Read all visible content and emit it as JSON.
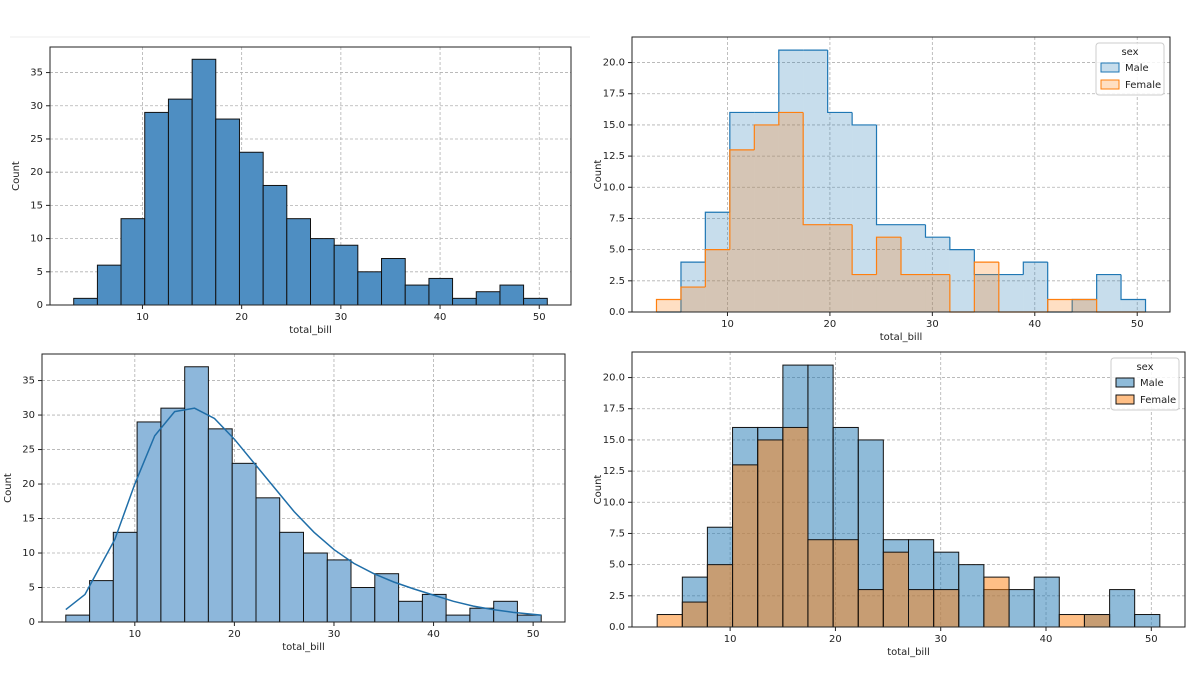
{
  "chart_data": [
    {
      "type": "histogram",
      "xlabel": "total_bill",
      "ylabel": "Count",
      "bins": [
        3.07,
        5.46,
        7.84,
        10.23,
        12.62,
        15.01,
        17.39,
        19.78,
        22.17,
        24.55,
        26.94,
        29.33,
        31.71,
        34.1,
        36.49,
        38.88,
        41.26,
        43.65,
        46.04,
        48.42,
        50.81
      ],
      "values": [
        1,
        6,
        13,
        29,
        31,
        37,
        28,
        23,
        18,
        13,
        10,
        9,
        5,
        7,
        3,
        4,
        1,
        2,
        3,
        1
      ],
      "color": "#4e8ec2",
      "xlim": [
        0.68,
        53.2
      ],
      "ylim": [
        0,
        38.85
      ],
      "xticks": [
        10,
        20,
        30,
        40,
        50
      ],
      "yticks": [
        0,
        5,
        10,
        15,
        20,
        25,
        30,
        35
      ],
      "grid": true
    },
    {
      "type": "histogram",
      "element": "step",
      "alpha": 0.25,
      "xlabel": "total_bill",
      "ylabel": "Count",
      "legend_title": "sex",
      "legend": "upper right",
      "bins": [
        3.07,
        5.46,
        7.84,
        10.23,
        12.62,
        15.01,
        17.39,
        19.78,
        22.17,
        24.55,
        26.94,
        29.33,
        31.71,
        34.1,
        36.49,
        38.88,
        41.26,
        43.65,
        46.04,
        48.42,
        50.81
      ],
      "series": [
        {
          "name": "Male",
          "color": "#1f77b4",
          "values": [
            0,
            4,
            8,
            16,
            16,
            21,
            21,
            16,
            15,
            7,
            7,
            6,
            5,
            3,
            3,
            4,
            0,
            1,
            3,
            1
          ]
        },
        {
          "name": "Female",
          "color": "#ff7f0e",
          "values": [
            1,
            2,
            5,
            13,
            15,
            16,
            7,
            7,
            3,
            6,
            3,
            3,
            0,
            4,
            0,
            0,
            1,
            1,
            0,
            0
          ]
        }
      ],
      "xlim": [
        0.68,
        53.2
      ],
      "ylim": [
        0,
        22.05
      ],
      "xticks": [
        10,
        20,
        30,
        40,
        50
      ],
      "yticks": [
        {
          "value": 0,
          "label": "0.0"
        },
        {
          "value": 2.5,
          "label": "2.5"
        },
        {
          "value": 5,
          "label": "5.0"
        },
        {
          "value": 7.5,
          "label": "7.5"
        },
        {
          "value": 10,
          "label": "10.0"
        },
        {
          "value": 12.5,
          "label": "12.5"
        },
        {
          "value": 15,
          "label": "15.0"
        },
        {
          "value": 17.5,
          "label": "17.5"
        },
        {
          "value": 20,
          "label": "20.0"
        }
      ],
      "grid": true
    },
    {
      "type": "histogram",
      "xlabel": "total_bill",
      "ylabel": "Count",
      "bins": [
        3.07,
        5.46,
        7.84,
        10.23,
        12.62,
        15.01,
        17.39,
        19.78,
        22.17,
        24.55,
        26.94,
        29.33,
        31.71,
        34.1,
        36.49,
        38.88,
        41.26,
        43.65,
        46.04,
        48.42,
        50.81
      ],
      "values": [
        1,
        6,
        13,
        29,
        31,
        37,
        28,
        23,
        18,
        13,
        10,
        9,
        5,
        7,
        3,
        4,
        1,
        2,
        3,
        1
      ],
      "color": "#8db7db",
      "kde": {
        "color": "#1f6ea8",
        "x": [
          3.07,
          5,
          8,
          10,
          12,
          14,
          16,
          18,
          20,
          22,
          24,
          26,
          28,
          30,
          32,
          34,
          36,
          38,
          40,
          42,
          44,
          46,
          48,
          50.81
        ],
        "values": [
          1.8,
          4,
          12,
          20,
          27,
          30.5,
          31,
          29.5,
          26.5,
          23,
          19.5,
          16,
          13,
          10.5,
          8.5,
          7,
          5.8,
          4.8,
          3.9,
          3,
          2.3,
          1.8,
          1.4,
          1
        ]
      },
      "xlim": [
        0.68,
        53.2
      ],
      "ylim": [
        0,
        38.85
      ],
      "xticks": [
        10,
        20,
        30,
        40,
        50
      ],
      "yticks": [
        0,
        5,
        10,
        15,
        20,
        25,
        30,
        35
      ],
      "grid": true
    },
    {
      "type": "histogram",
      "element": "bars",
      "alpha": 0.5,
      "xlabel": "total_bill",
      "ylabel": "Count",
      "legend_title": "sex",
      "legend": "upper right",
      "bins": [
        3.07,
        5.46,
        7.84,
        10.23,
        12.62,
        15.01,
        17.39,
        19.78,
        22.17,
        24.55,
        26.94,
        29.33,
        31.71,
        34.1,
        36.49,
        38.88,
        41.26,
        43.65,
        46.04,
        48.42,
        50.81
      ],
      "series": [
        {
          "name": "Male",
          "color": "#1f77b4",
          "values": [
            0,
            4,
            8,
            16,
            16,
            21,
            21,
            16,
            15,
            7,
            7,
            6,
            5,
            3,
            3,
            4,
            0,
            1,
            3,
            1
          ]
        },
        {
          "name": "Female",
          "color": "#ff7f0e",
          "values": [
            1,
            2,
            5,
            13,
            15,
            16,
            7,
            7,
            3,
            6,
            3,
            3,
            0,
            4,
            0,
            0,
            1,
            1,
            0,
            0
          ]
        }
      ],
      "xlim": [
        0.68,
        53.2
      ],
      "ylim": [
        0,
        22.05
      ],
      "xticks": [
        10,
        20,
        30,
        40,
        50
      ],
      "yticks": [
        {
          "value": 0,
          "label": "0.0"
        },
        {
          "value": 2.5,
          "label": "2.5"
        },
        {
          "value": 5,
          "label": "5.0"
        },
        {
          "value": 7.5,
          "label": "7.5"
        },
        {
          "value": 10,
          "label": "10.0"
        },
        {
          "value": 12.5,
          "label": "12.5"
        },
        {
          "value": 15,
          "label": "15.0"
        },
        {
          "value": 17.5,
          "label": "17.5"
        },
        {
          "value": 20,
          "label": "20.0"
        }
      ],
      "grid": true
    }
  ]
}
